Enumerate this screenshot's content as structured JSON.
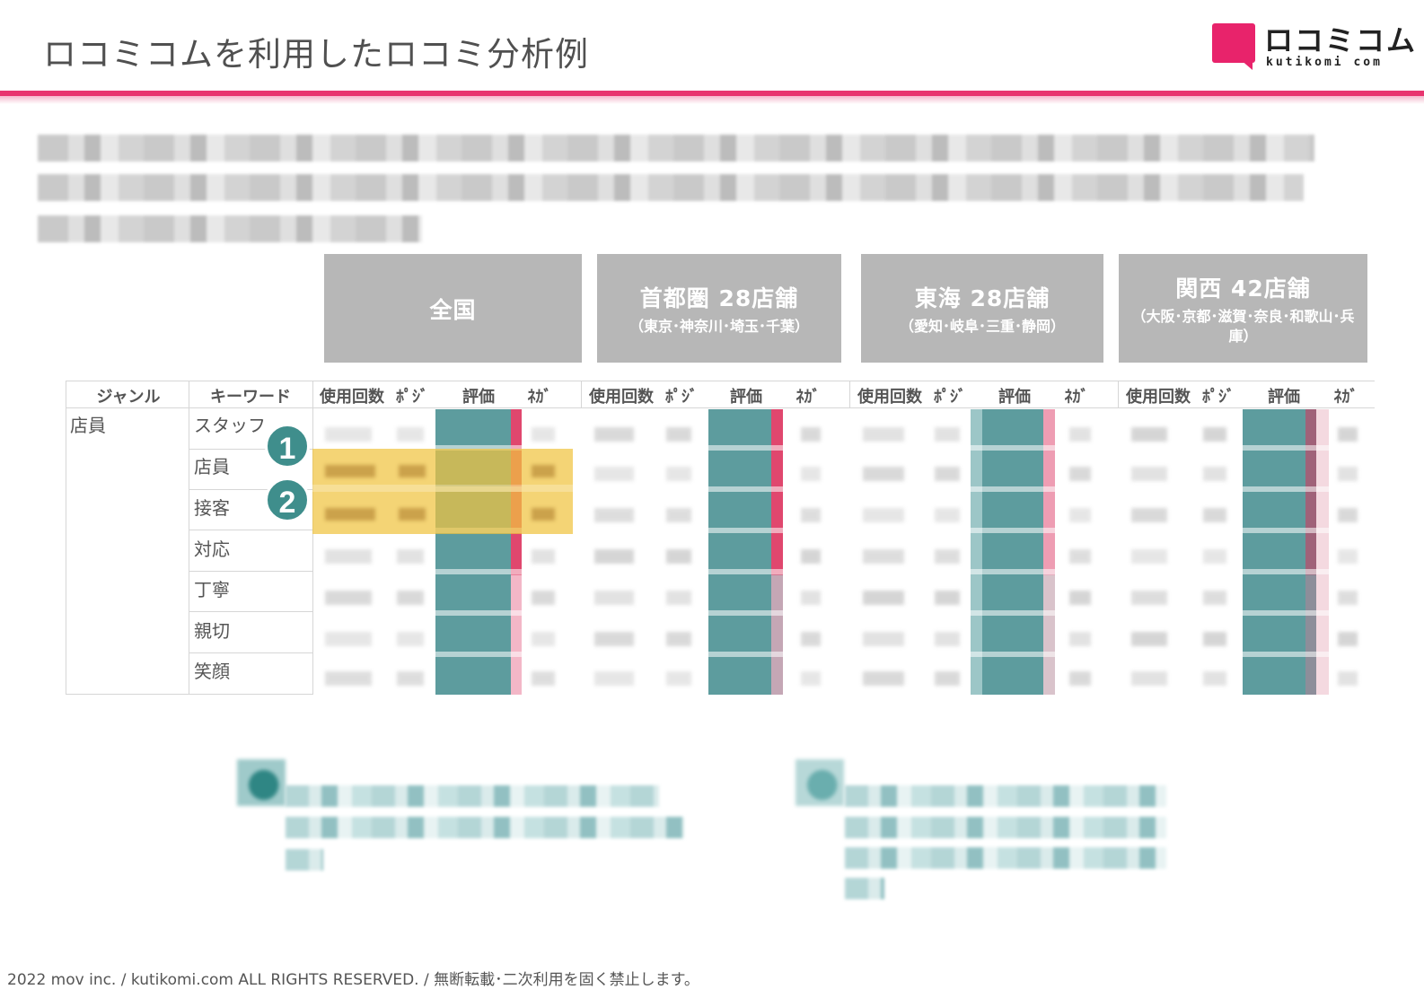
{
  "header": {
    "title": "ロコミコムを利用したロコミ分析例",
    "logo_text": "ロコミコム",
    "logo_sub": "kutikomi com",
    "accent_color": "#e8356f"
  },
  "regions": [
    {
      "name": "全国",
      "sub": ""
    },
    {
      "name": "首都圏 28店舗",
      "sub": "（東京･神奈川･埼玉･千葉）"
    },
    {
      "name": "東海 28店舗",
      "sub": "（愛知･岐阜･三重･静岡）"
    },
    {
      "name": "関西 42店舗",
      "sub": "（大阪･京都･滋賀･奈良･和歌山･兵庫）"
    }
  ],
  "table": {
    "genre_header": "ジャンル",
    "keyword_header": "キーワード",
    "metric_headers": [
      "使用回数",
      "ﾎﾟｼﾞ",
      "評価",
      "ﾈｶﾞ"
    ],
    "genre": "店員",
    "keywords": [
      "スタッフ",
      "店員",
      "接客",
      "対応",
      "丁寧",
      "親切",
      "笑顔"
    ],
    "eval_color": "#5d9c9e",
    "negative_color": "#e0476e",
    "highlight_color": "#f0c440"
  },
  "markers": [
    "1",
    "2"
  ],
  "footer": "2022 mov inc. / kutikomi.com ALL RIGHTS RESERVED. / 無断転載･二次利用を固く禁止します。"
}
